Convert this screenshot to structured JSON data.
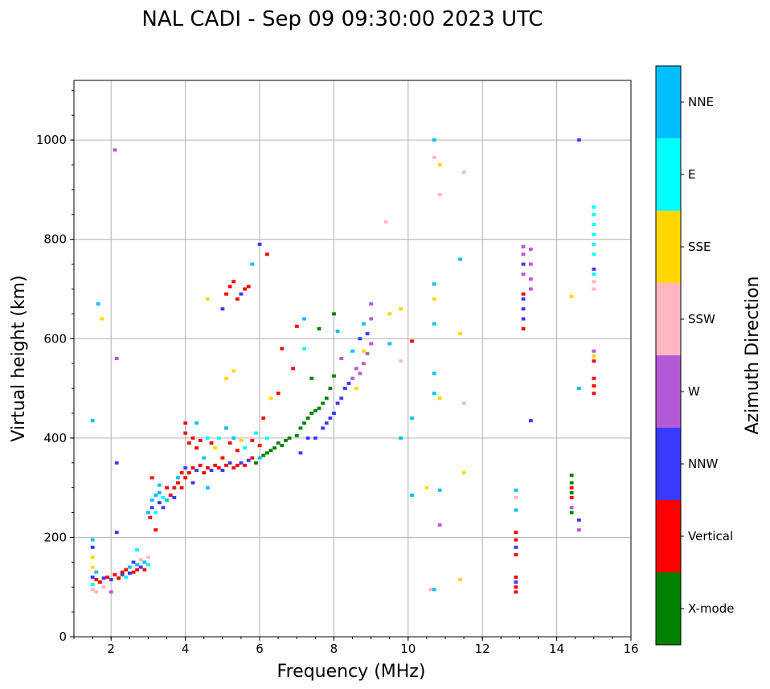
{
  "chart_data": {
    "type": "scatter",
    "title": "NAL CADI - Sep 09 09:30:00 2023 UTC",
    "xlabel": "Frequency (MHz)",
    "ylabel": "Virtual height (km)",
    "xlim": [
      1,
      16
    ],
    "ylim": [
      0,
      1120
    ],
    "xticks": [
      2,
      4,
      6,
      8,
      10,
      12,
      14,
      16
    ],
    "yticks": [
      0,
      200,
      400,
      600,
      800,
      1000
    ],
    "grid": true,
    "colorbar": {
      "label": "Azimuth Direction",
      "categories": [
        "X-mode",
        "Vertical",
        "NNW",
        "W",
        "SSW",
        "SSE",
        "E",
        "NNE"
      ],
      "colors": [
        "#008000",
        "#ff0000",
        "#3a3aff",
        "#b55ad6",
        "#ffb6c1",
        "#ffd700",
        "#00ffff",
        "#00bfff"
      ]
    },
    "point_format": [
      "frequency_MHz",
      "height_km",
      "category_index"
    ],
    "points": [
      [
        1.5,
        95,
        4
      ],
      [
        1.5,
        105,
        6
      ],
      [
        1.5,
        120,
        2
      ],
      [
        1.5,
        140,
        5
      ],
      [
        1.5,
        160,
        5
      ],
      [
        1.5,
        180,
        2
      ],
      [
        1.5,
        195,
        7
      ],
      [
        1.5,
        435,
        7
      ],
      [
        1.6,
        90,
        4
      ],
      [
        1.6,
        115,
        1
      ],
      [
        1.6,
        130,
        7
      ],
      [
        1.65,
        670,
        7
      ],
      [
        1.75,
        640,
        5
      ],
      [
        1.7,
        110,
        1
      ],
      [
        1.8,
        118,
        2
      ],
      [
        1.8,
        100,
        4
      ],
      [
        1.9,
        120,
        1
      ],
      [
        2.0,
        115,
        2
      ],
      [
        2.0,
        90,
        3
      ],
      [
        2.1,
        125,
        1
      ],
      [
        2.1,
        980,
        3
      ],
      [
        2.15,
        560,
        3
      ],
      [
        2.15,
        350,
        2
      ],
      [
        2.15,
        210,
        2
      ],
      [
        2.2,
        118,
        1
      ],
      [
        2.3,
        125,
        2
      ],
      [
        2.3,
        130,
        1
      ],
      [
        2.4,
        120,
        6
      ],
      [
        2.4,
        135,
        1
      ],
      [
        2.5,
        128,
        2
      ],
      [
        2.5,
        140,
        7
      ],
      [
        2.6,
        130,
        1
      ],
      [
        2.6,
        150,
        2
      ],
      [
        2.7,
        135,
        1
      ],
      [
        2.7,
        145,
        7
      ],
      [
        2.7,
        175,
        6
      ],
      [
        2.8,
        140,
        2
      ],
      [
        2.8,
        155,
        4
      ],
      [
        2.9,
        150,
        7
      ],
      [
        2.9,
        135,
        1
      ],
      [
        3.0,
        145,
        6
      ],
      [
        3.0,
        160,
        4
      ],
      [
        3.0,
        250,
        7
      ],
      [
        3.05,
        240,
        1
      ],
      [
        3.1,
        260,
        2
      ],
      [
        3.1,
        275,
        7
      ],
      [
        3.1,
        320,
        1
      ],
      [
        3.2,
        250,
        6
      ],
      [
        3.2,
        285,
        7
      ],
      [
        3.2,
        215,
        1
      ],
      [
        3.3,
        270,
        2
      ],
      [
        3.3,
        290,
        7
      ],
      [
        3.3,
        305,
        7
      ],
      [
        3.4,
        260,
        2
      ],
      [
        3.4,
        280,
        6
      ],
      [
        3.5,
        275,
        7
      ],
      [
        3.5,
        300,
        1
      ],
      [
        3.6,
        285,
        1
      ],
      [
        3.7,
        300,
        1
      ],
      [
        3.7,
        280,
        2
      ],
      [
        3.8,
        310,
        1
      ],
      [
        3.8,
        320,
        7
      ],
      [
        3.9,
        330,
        1
      ],
      [
        3.9,
        300,
        1
      ],
      [
        4.0,
        320,
        1
      ],
      [
        4.0,
        340,
        2
      ],
      [
        4.0,
        430,
        1
      ],
      [
        4.0,
        410,
        1
      ],
      [
        4.1,
        330,
        1
      ],
      [
        4.1,
        390,
        1
      ],
      [
        4.2,
        340,
        1
      ],
      [
        4.2,
        400,
        1
      ],
      [
        4.2,
        310,
        2
      ],
      [
        4.3,
        335,
        2
      ],
      [
        4.3,
        380,
        1
      ],
      [
        4.3,
        430,
        7
      ],
      [
        4.4,
        345,
        1
      ],
      [
        4.4,
        395,
        1
      ],
      [
        4.5,
        330,
        1
      ],
      [
        4.5,
        360,
        7
      ],
      [
        4.6,
        340,
        1
      ],
      [
        4.6,
        400,
        6
      ],
      [
        4.6,
        300,
        7
      ],
      [
        4.7,
        335,
        2
      ],
      [
        4.7,
        390,
        1
      ],
      [
        4.8,
        345,
        1
      ],
      [
        4.8,
        380,
        5
      ],
      [
        4.9,
        340,
        1
      ],
      [
        4.9,
        400,
        6
      ],
      [
        5.0,
        335,
        2
      ],
      [
        5.0,
        360,
        1
      ],
      [
        5.1,
        345,
        1
      ],
      [
        5.1,
        420,
        7
      ],
      [
        5.2,
        350,
        2
      ],
      [
        5.2,
        390,
        1
      ],
      [
        5.3,
        340,
        1
      ],
      [
        5.3,
        400,
        7
      ],
      [
        5.4,
        345,
        1
      ],
      [
        5.4,
        375,
        1
      ],
      [
        5.5,
        350,
        2
      ],
      [
        5.5,
        395,
        5
      ],
      [
        5.6,
        345,
        1
      ],
      [
        5.6,
        380,
        6
      ],
      [
        5.7,
        355,
        2
      ],
      [
        5.8,
        360,
        1
      ],
      [
        5.8,
        395,
        1
      ],
      [
        5.9,
        350,
        0
      ],
      [
        5.9,
        410,
        6
      ],
      [
        6.0,
        360,
        7
      ],
      [
        6.0,
        385,
        1
      ],
      [
        6.1,
        365,
        0
      ],
      [
        6.1,
        440,
        1
      ],
      [
        6.2,
        370,
        0
      ],
      [
        6.2,
        400,
        6
      ],
      [
        6.3,
        375,
        0
      ],
      [
        6.3,
        480,
        5
      ],
      [
        6.4,
        380,
        0
      ],
      [
        6.5,
        390,
        0
      ],
      [
        6.5,
        490,
        1
      ],
      [
        6.6,
        385,
        0
      ],
      [
        6.6,
        580,
        1
      ],
      [
        6.7,
        395,
        0
      ],
      [
        6.8,
        400,
        0
      ],
      [
        6.9,
        540,
        1
      ],
      [
        7.0,
        405,
        0
      ],
      [
        7.0,
        625,
        1
      ],
      [
        7.1,
        420,
        0
      ],
      [
        7.1,
        370,
        2
      ],
      [
        7.2,
        430,
        0
      ],
      [
        7.2,
        580,
        6
      ],
      [
        7.2,
        640,
        7
      ],
      [
        7.3,
        440,
        0
      ],
      [
        7.3,
        400,
        2
      ],
      [
        7.4,
        450,
        0
      ],
      [
        7.4,
        520,
        0
      ],
      [
        7.5,
        455,
        0
      ],
      [
        7.5,
        400,
        2
      ],
      [
        7.6,
        460,
        0
      ],
      [
        7.6,
        620,
        0
      ],
      [
        7.7,
        470,
        0
      ],
      [
        7.7,
        420,
        2
      ],
      [
        7.8,
        480,
        0
      ],
      [
        7.8,
        430,
        2
      ],
      [
        7.9,
        500,
        0
      ],
      [
        7.9,
        440,
        2
      ],
      [
        8.0,
        650,
        0
      ],
      [
        8.0,
        450,
        2
      ],
      [
        8.0,
        525,
        0
      ],
      [
        8.1,
        470,
        2
      ],
      [
        8.1,
        615,
        7
      ],
      [
        8.2,
        480,
        2
      ],
      [
        8.2,
        560,
        3
      ],
      [
        8.3,
        500,
        2
      ],
      [
        8.4,
        510,
        2
      ],
      [
        8.5,
        520,
        3
      ],
      [
        8.5,
        575,
        7
      ],
      [
        8.6,
        500,
        5
      ],
      [
        8.6,
        540,
        3
      ],
      [
        8.7,
        530,
        3
      ],
      [
        8.7,
        600,
        2
      ],
      [
        8.8,
        550,
        3
      ],
      [
        8.8,
        575,
        5
      ],
      [
        8.8,
        630,
        7
      ],
      [
        8.9,
        570,
        3
      ],
      [
        8.9,
        610,
        2
      ],
      [
        9.0,
        590,
        3
      ],
      [
        9.0,
        640,
        3
      ],
      [
        9.0,
        670,
        3
      ],
      [
        5.0,
        660,
        2
      ],
      [
        5.1,
        690,
        1
      ],
      [
        5.2,
        705,
        1
      ],
      [
        5.3,
        715,
        1
      ],
      [
        5.4,
        680,
        1
      ],
      [
        5.5,
        690,
        2
      ],
      [
        5.6,
        700,
        1
      ],
      [
        5.7,
        705,
        1
      ],
      [
        5.8,
        750,
        7
      ],
      [
        6.0,
        790,
        2
      ],
      [
        6.2,
        770,
        1
      ],
      [
        4.6,
        680,
        5
      ],
      [
        5.1,
        520,
        5
      ],
      [
        5.3,
        535,
        5
      ],
      [
        9.4,
        835,
        4
      ],
      [
        9.5,
        650,
        5
      ],
      [
        9.5,
        590,
        7
      ],
      [
        9.8,
        660,
        5
      ],
      [
        9.8,
        555,
        4
      ],
      [
        9.8,
        400,
        7
      ],
      [
        10.1,
        595,
        1
      ],
      [
        10.1,
        440,
        7
      ],
      [
        10.1,
        285,
        7
      ],
      [
        10.5,
        300,
        5
      ],
      [
        10.6,
        95,
        4
      ],
      [
        10.7,
        95,
        7
      ],
      [
        10.7,
        1000,
        7
      ],
      [
        10.7,
        965,
        4
      ],
      [
        10.7,
        710,
        7
      ],
      [
        10.7,
        680,
        5
      ],
      [
        10.7,
        630,
        7
      ],
      [
        10.7,
        530,
        7
      ],
      [
        10.7,
        490,
        7
      ],
      [
        10.85,
        950,
        5
      ],
      [
        10.85,
        890,
        4
      ],
      [
        10.85,
        480,
        5
      ],
      [
        10.85,
        295,
        7
      ],
      [
        10.85,
        225,
        3
      ],
      [
        11.4,
        760,
        7
      ],
      [
        11.4,
        610,
        5
      ],
      [
        11.4,
        115,
        5
      ],
      [
        11.5,
        935,
        4
      ],
      [
        11.5,
        330,
        5
      ],
      [
        11.5,
        470,
        4
      ],
      [
        12.9,
        90,
        1
      ],
      [
        12.9,
        100,
        1
      ],
      [
        12.9,
        110,
        2
      ],
      [
        12.9,
        120,
        1
      ],
      [
        12.9,
        165,
        1
      ],
      [
        12.9,
        180,
        2
      ],
      [
        12.9,
        195,
        1
      ],
      [
        12.9,
        210,
        1
      ],
      [
        12.9,
        255,
        7
      ],
      [
        12.9,
        280,
        4
      ],
      [
        12.9,
        295,
        7
      ],
      [
        13.1,
        620,
        1
      ],
      [
        13.1,
        640,
        2
      ],
      [
        13.1,
        660,
        2
      ],
      [
        13.1,
        680,
        2
      ],
      [
        13.1,
        690,
        1
      ],
      [
        13.1,
        730,
        3
      ],
      [
        13.1,
        750,
        2
      ],
      [
        13.1,
        770,
        3
      ],
      [
        13.1,
        785,
        3
      ],
      [
        13.3,
        780,
        3
      ],
      [
        13.3,
        750,
        3
      ],
      [
        13.3,
        720,
        3
      ],
      [
        13.3,
        700,
        3
      ],
      [
        13.3,
        435,
        2
      ],
      [
        14.4,
        250,
        0
      ],
      [
        14.4,
        260,
        3
      ],
      [
        14.4,
        280,
        1
      ],
      [
        14.4,
        290,
        0
      ],
      [
        14.4,
        300,
        1
      ],
      [
        14.4,
        310,
        0
      ],
      [
        14.4,
        325,
        0
      ],
      [
        14.4,
        685,
        5
      ],
      [
        14.6,
        215,
        3
      ],
      [
        14.6,
        235,
        2
      ],
      [
        14.6,
        500,
        7
      ],
      [
        14.6,
        1000,
        2
      ],
      [
        15.0,
        490,
        1
      ],
      [
        15.0,
        505,
        1
      ],
      [
        15.0,
        520,
        1
      ],
      [
        15.0,
        555,
        1
      ],
      [
        15.0,
        565,
        5
      ],
      [
        15.0,
        575,
        3
      ],
      [
        15.0,
        700,
        4
      ],
      [
        15.0,
        715,
        4
      ],
      [
        15.0,
        730,
        6
      ],
      [
        15.0,
        740,
        2
      ],
      [
        15.0,
        770,
        6
      ],
      [
        15.0,
        790,
        6
      ],
      [
        15.0,
        810,
        6
      ],
      [
        15.0,
        830,
        6
      ],
      [
        15.0,
        850,
        6
      ],
      [
        15.0,
        865,
        6
      ]
    ]
  }
}
